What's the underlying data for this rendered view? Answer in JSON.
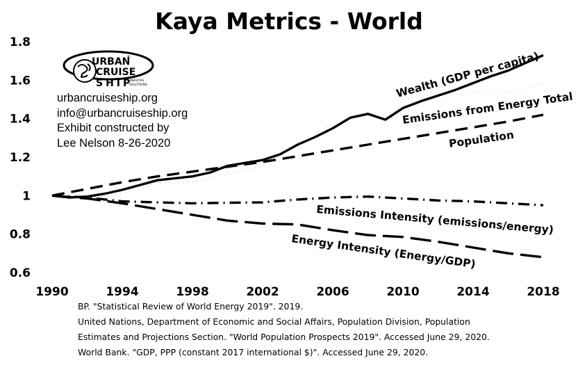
{
  "chart_data": {
    "type": "line",
    "title": "Kaya Metrics - World",
    "xlim": [
      1990,
      2018
    ],
    "ylim": [
      0.6,
      1.8
    ],
    "x_ticks": [
      1990,
      1994,
      1998,
      2002,
      2006,
      2010,
      2014,
      2018
    ],
    "y_ticks": [
      {
        "value": 0.6,
        "label": "0.6"
      },
      {
        "value": 0.8,
        "label": "0.8"
      },
      {
        "value": 1.0,
        "label": "1"
      },
      {
        "value": 1.2,
        "label": "1.2"
      },
      {
        "value": 1.4,
        "label": "1.4"
      },
      {
        "value": 1.6,
        "label": "1.6"
      },
      {
        "value": 1.8,
        "label": "1.8"
      }
    ],
    "grid": false,
    "legend": "none",
    "series": [
      {
        "name": "Wealth (GDP per capita)",
        "style": "solid",
        "x": [
          1990,
          1991,
          1992,
          1993,
          1994,
          1995,
          1996,
          1997,
          1998,
          1999,
          2000,
          2001,
          2002,
          2003,
          2004,
          2005,
          2006,
          2007,
          2008,
          2009,
          2010,
          2011,
          2012,
          2013,
          2014,
          2015,
          2016,
          2017,
          2018
        ],
        "values": [
          1.0,
          0.99,
          0.995,
          1.01,
          1.03,
          1.055,
          1.08,
          1.09,
          1.1,
          1.12,
          1.155,
          1.17,
          1.185,
          1.215,
          1.265,
          1.305,
          1.35,
          1.405,
          1.425,
          1.395,
          1.455,
          1.49,
          1.52,
          1.55,
          1.585,
          1.62,
          1.65,
          1.69,
          1.73
        ]
      },
      {
        "name": "Emissions from Energy Total",
        "style": "dotted",
        "x": [
          1990,
          1991,
          1992,
          1993,
          1994,
          1995,
          1996,
          1997,
          1998,
          1999,
          2000,
          2001,
          2002,
          2003,
          2004,
          2005,
          2006,
          2007,
          2008,
          2009,
          2010,
          2011,
          2012,
          2013,
          2014,
          2015,
          2016,
          2017,
          2018
        ],
        "values": [
          1.0,
          1.0,
          0.995,
          1.0,
          1.015,
          1.04,
          1.065,
          1.065,
          1.07,
          1.09,
          1.115,
          1.13,
          1.155,
          1.22,
          1.27,
          1.32,
          1.37,
          1.41,
          1.42,
          1.4,
          1.46,
          1.5,
          1.515,
          1.53,
          1.535,
          1.53,
          1.535,
          1.555,
          1.59
        ]
      },
      {
        "name": "Population",
        "style": "dashed",
        "x": [
          1990,
          1992,
          1994,
          1996,
          1998,
          2000,
          2002,
          2004,
          2006,
          2008,
          2010,
          2012,
          2014,
          2016,
          2018
        ],
        "values": [
          1.0,
          1.035,
          1.07,
          1.1,
          1.125,
          1.15,
          1.175,
          1.205,
          1.235,
          1.265,
          1.295,
          1.325,
          1.355,
          1.385,
          1.42
        ]
      },
      {
        "name": "Emissions Intensity (emissions/energy)",
        "style": "dashdot",
        "x": [
          1990,
          1992,
          1994,
          1996,
          1998,
          2000,
          2002,
          2004,
          2006,
          2008,
          2010,
          2012,
          2014,
          2016,
          2018
        ],
        "values": [
          1.0,
          0.99,
          0.97,
          0.965,
          0.96,
          0.963,
          0.965,
          0.98,
          0.99,
          0.995,
          0.985,
          0.975,
          0.97,
          0.96,
          0.95
        ]
      },
      {
        "name": "Energy Intensity (Energy/GDP)",
        "style": "longdash",
        "x": [
          1990,
          1992,
          1994,
          1996,
          1998,
          2000,
          2002,
          2004,
          2006,
          2008,
          2010,
          2012,
          2014,
          2016,
          2018
        ],
        "values": [
          1.0,
          0.985,
          0.96,
          0.93,
          0.9,
          0.87,
          0.855,
          0.85,
          0.82,
          0.795,
          0.785,
          0.76,
          0.73,
          0.7,
          0.68
        ]
      }
    ]
  },
  "logo": {
    "line1": "URBAN",
    "line2": "CRUISE",
    "line3": "SHIP",
    "sub1": "ANALYSIS",
    "sub2": "SOLUTIONS",
    "reg": "®"
  },
  "info": {
    "website": "urbancruiseship.org",
    "email": "info@urbancruiseship.org",
    "credit1": "Exhibit constructed by",
    "credit2": "Lee Nelson 8-26-2020"
  },
  "sources": [
    "BP. \"Statistical Review of World Energy 2019\". 2019.",
    "United Nations, Department of Economic and Social Affairs, Population Division, Population",
    "Estimates and Projections Section. \"World Population Prospects 2019\". Accessed June 29, 2020.",
    "World Bank. \"GDP, PPP (constant 2017 international $)\". Accessed June 29, 2020."
  ]
}
